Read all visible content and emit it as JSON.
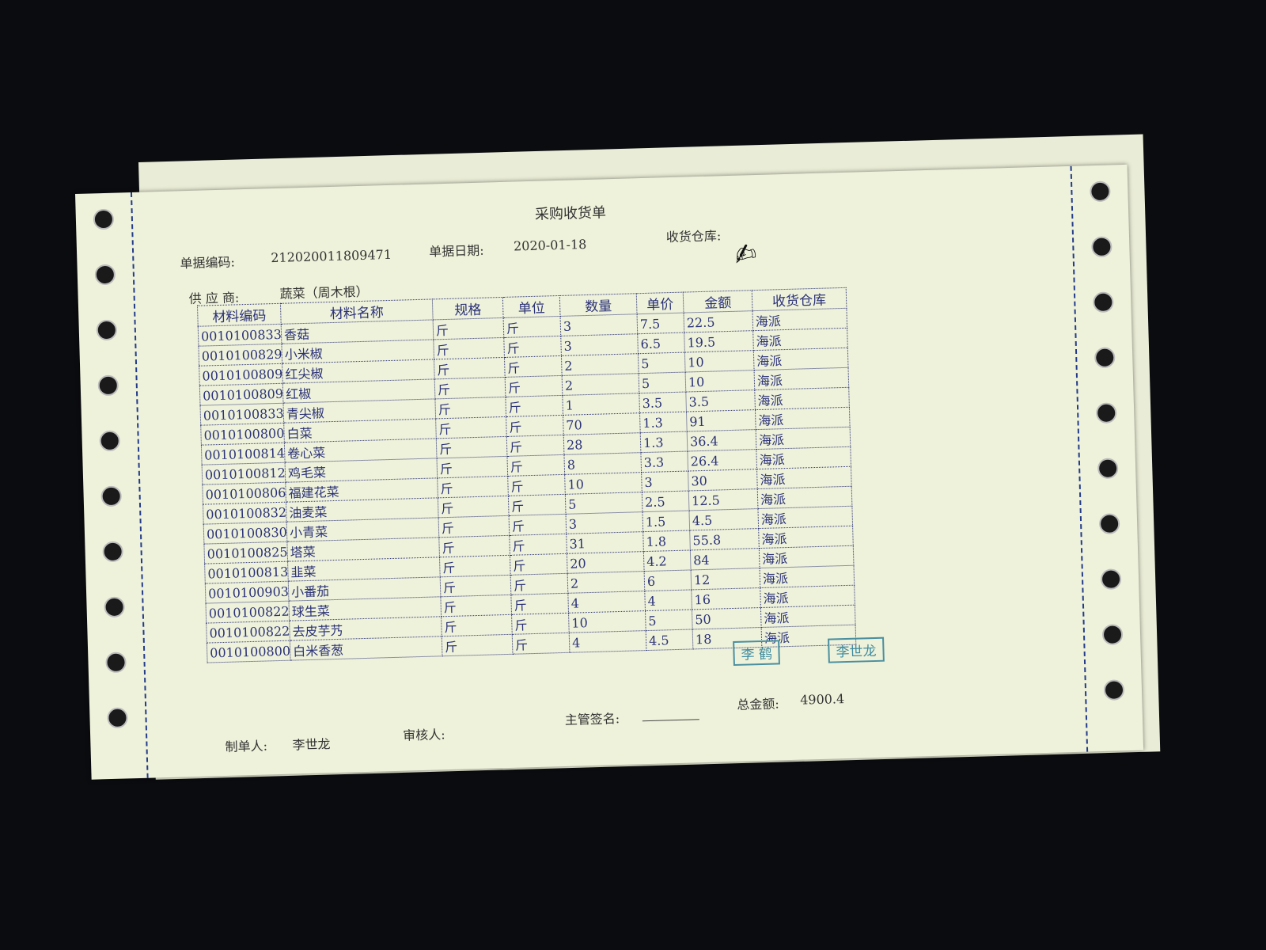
{
  "document": {
    "title": "采购收货单",
    "doc_no_label": "单据编码:",
    "doc_no": "212020011809471",
    "date_label": "单据日期:",
    "date": "2020-01-18",
    "warehouse_label": "收货仓库:",
    "supplier_label": "供 应 商:",
    "supplier": "蔬菜（周木根）",
    "handwritten_signature": "春阳"
  },
  "table": {
    "headers": [
      "材料编码",
      "材料名称",
      "规格",
      "单位",
      "数量",
      "单价",
      "金额",
      "收货仓库"
    ],
    "rows": [
      [
        "0010100833",
        "香菇",
        "斤",
        "斤",
        "3",
        "7.5",
        "22.5",
        "海派"
      ],
      [
        "0010100829",
        "小米椒",
        "斤",
        "斤",
        "3",
        "6.5",
        "19.5",
        "海派"
      ],
      [
        "0010100809",
        "红尖椒",
        "斤",
        "斤",
        "2",
        "5",
        "10",
        "海派"
      ],
      [
        "0010100809",
        "红椒",
        "斤",
        "斤",
        "2",
        "5",
        "10",
        "海派"
      ],
      [
        "0010100833",
        "青尖椒",
        "斤",
        "斤",
        "1",
        "3.5",
        "3.5",
        "海派"
      ],
      [
        "0010100800",
        "白菜",
        "斤",
        "斤",
        "70",
        "1.3",
        "91",
        "海派"
      ],
      [
        "0010100814",
        "卷心菜",
        "斤",
        "斤",
        "28",
        "1.3",
        "36.4",
        "海派"
      ],
      [
        "0010100812",
        "鸡毛菜",
        "斤",
        "斤",
        "8",
        "3.3",
        "26.4",
        "海派"
      ],
      [
        "0010100806",
        "福建花菜",
        "斤",
        "斤",
        "10",
        "3",
        "30",
        "海派"
      ],
      [
        "0010100832",
        "油麦菜",
        "斤",
        "斤",
        "5",
        "2.5",
        "12.5",
        "海派"
      ],
      [
        "0010100830",
        "小青菜",
        "斤",
        "斤",
        "3",
        "1.5",
        "4.5",
        "海派"
      ],
      [
        "0010100825",
        "塔菜",
        "斤",
        "斤",
        "31",
        "1.8",
        "55.8",
        "海派"
      ],
      [
        "0010100813",
        "韭菜",
        "斤",
        "斤",
        "20",
        "4.2",
        "84",
        "海派"
      ],
      [
        "0010100903",
        "小番茄",
        "斤",
        "斤",
        "2",
        "6",
        "12",
        "海派"
      ],
      [
        "0010100822",
        "球生菜",
        "斤",
        "斤",
        "4",
        "4",
        "16",
        "海派"
      ],
      [
        "0010100822",
        "去皮芋艿",
        "斤",
        "斤",
        "10",
        "5",
        "50",
        "海派"
      ],
      [
        "0010100800",
        "白米香葱",
        "斤",
        "斤",
        "4",
        "4.5",
        "18",
        "海派"
      ]
    ]
  },
  "stamps": [
    "李 鹤",
    "李世龙"
  ],
  "footer": {
    "maker_label": "制单人:",
    "maker": "李世龙",
    "reviewer_label": "审核人:",
    "supervisor_label": "主管签名:",
    "total_label": "总金额:",
    "total": "4900.4"
  }
}
